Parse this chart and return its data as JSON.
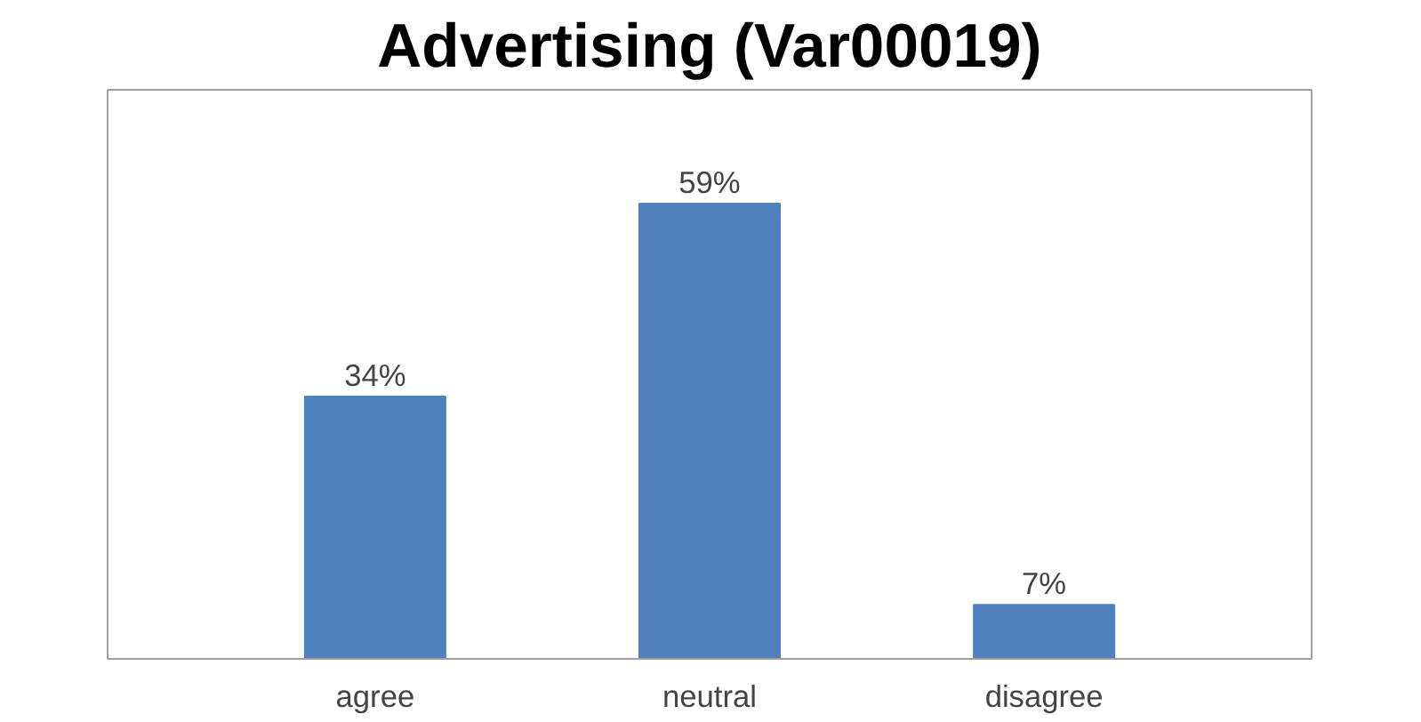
{
  "chart_data": {
    "type": "bar",
    "title": "Advertising (Var00019)",
    "categories": [
      "agree",
      "neutral",
      "disagree"
    ],
    "values": [
      34,
      59,
      7
    ],
    "value_labels": [
      "34%",
      "59%",
      "7%"
    ],
    "color": "#4f81bd",
    "grid": false
  }
}
